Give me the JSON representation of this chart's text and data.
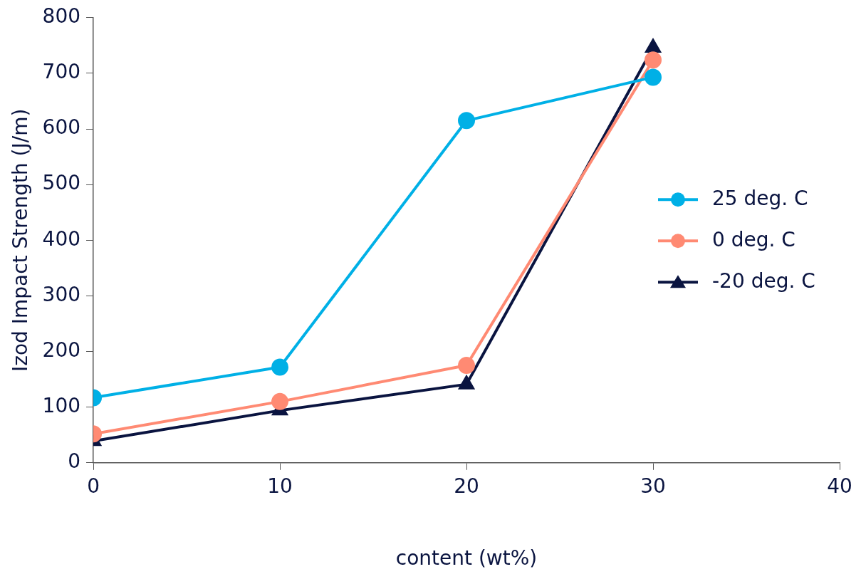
{
  "chart_data": {
    "type": "line",
    "xlabel": "content (wt%)",
    "ylabel": "Izod Impact Strength (J/m)",
    "x": [
      0,
      10,
      20,
      30
    ],
    "series": [
      {
        "name": "25 deg. C",
        "color": "#00b0e6",
        "marker": "circle",
        "values": [
          117,
          172,
          615,
          693
        ]
      },
      {
        "name": "0 deg. C",
        "color": "#ff8a73",
        "marker": "circle",
        "values": [
          52,
          110,
          175,
          724
        ]
      },
      {
        "name": "-20 deg. C",
        "color": "#0a1440",
        "marker": "triangle",
        "values": [
          39,
          94,
          141,
          746
        ]
      }
    ],
    "xlim": [
      0,
      40
    ],
    "xticks": [
      0,
      10,
      20,
      30,
      40
    ],
    "ylim": [
      0,
      800
    ],
    "yticks": [
      0,
      100,
      200,
      300,
      400,
      500,
      600,
      700,
      800
    ],
    "grid": false,
    "legend": "right",
    "line_style": "solid"
  }
}
